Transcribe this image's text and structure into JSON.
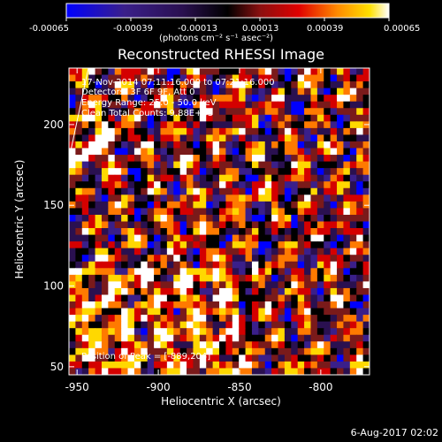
{
  "colorbar": {
    "ticks": [
      "-0.00065",
      "-0.00039",
      "-0.00013",
      "0.00013",
      "0.00039",
      "0.00065"
    ],
    "unit": "(photons cm⁻² s⁻¹ asec⁻²)"
  },
  "annotations": {
    "time_range": "17-Nov-2014 07:11:16.000 to 07:21:16.000",
    "detectors": "Detectors: 3F 6F 9F, Att 0",
    "energy_range": "Energy Range: 25.0 - 50.0 keV",
    "clean_counts": "Clean    Total Counts: 9.88E+03",
    "peak": "Position of Peak = [-889,204]"
  },
  "footer": {
    "date": "6-Aug-2017 02:02"
  },
  "chart_data": {
    "type": "heatmap",
    "title": "Reconstructed RHESSI Image",
    "xlabel": "Heliocentric X (arcsec)",
    "ylabel": "Heliocentric Y (arcsec)",
    "xlim": [
      -955,
      -770
    ],
    "ylim": [
      45,
      235
    ],
    "xticks": [
      -950,
      -900,
      -850,
      -800
    ],
    "yticks": [
      50,
      100,
      150,
      200
    ],
    "xtick_labels": [
      "-950",
      "-900",
      "-850",
      "-800"
    ],
    "ytick_labels": [
      "50",
      "100",
      "150",
      "200"
    ],
    "clim": [
      -0.00065,
      0.00065
    ],
    "colormap": [
      "#0000ff",
      "#3a1f8a",
      "#2a1050",
      "#000000",
      "#7a1a1a",
      "#d40000",
      "#ff7a00",
      "#ffd800",
      "#ffffff"
    ],
    "grid_cols": 46,
    "grid_rows": 46,
    "peak": [
      -889,
      204
    ]
  }
}
